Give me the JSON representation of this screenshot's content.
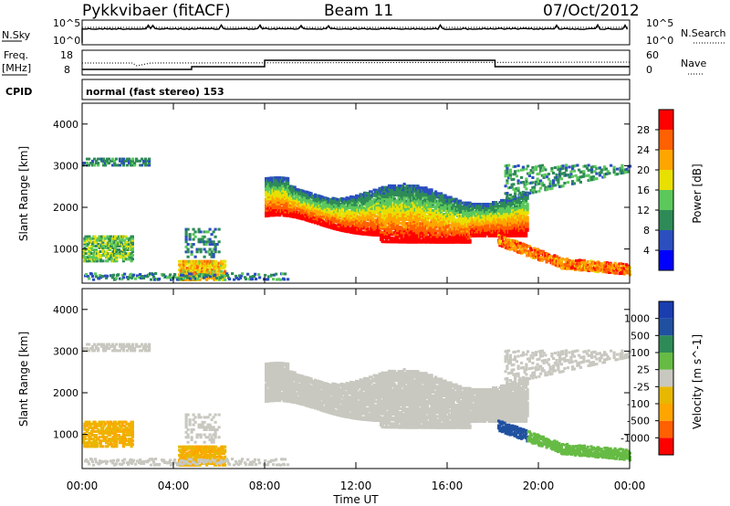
{
  "header": {
    "station": "Pykkvibaer (fitACF)",
    "beam": "Beam 11",
    "date": "07/Oct/2012"
  },
  "noise_panel": {
    "left_label": "N.Sky",
    "right_label": "N.Search",
    "ticks_left": [
      "10^5",
      "10^0"
    ],
    "ticks_right": [
      "10^5",
      "10^0"
    ]
  },
  "freq_panel": {
    "left_label_line1": "Freq.",
    "left_label_line2": "[MHz]",
    "right_label": "Nave",
    "ticks_left": [
      "18",
      "8"
    ],
    "ticks_right": [
      "60",
      "0"
    ]
  },
  "cpid": {
    "label": "CPID",
    "mode": "normal (fast stereo) 153"
  },
  "chart_data": [
    {
      "type": "heatmap",
      "quantity": "Power",
      "units": "dB",
      "ylabel": "Slant Range [km]",
      "xlabel": "Time UT",
      "x_ticks": [
        "00:00",
        "04:00",
        "08:00",
        "12:00",
        "16:00",
        "20:00",
        "00:00"
      ],
      "xlim_hours": [
        0,
        24
      ],
      "ylim": [
        180,
        4500
      ],
      "y_ticks": [
        1000,
        2000,
        3000,
        4000
      ],
      "colorbar_label": "Power [dB]",
      "colorbar_ticks": [
        "28",
        "24",
        "20",
        "16",
        "12",
        "8",
        "4"
      ],
      "colorbar_range": [
        0,
        30
      ],
      "colorbar_colors": [
        "#0000ff",
        "#2b4fbf",
        "#2e8b57",
        "#5cc85c",
        "#e8e000",
        "#ffa500",
        "#ff6000",
        "#ff0000"
      ]
    },
    {
      "type": "heatmap",
      "quantity": "Velocity",
      "units": "m s^-1",
      "ylabel": "Slant Range [km]",
      "xlabel": "Time UT",
      "x_ticks": [
        "00:00",
        "04:00",
        "08:00",
        "12:00",
        "16:00",
        "20:00",
        "00:00"
      ],
      "xlim_hours": [
        0,
        24
      ],
      "ylim": [
        180,
        4500
      ],
      "y_ticks": [
        1000,
        2000,
        3000,
        4000
      ],
      "colorbar_label": "Velocity [m s^-1]",
      "colorbar_ticks": [
        "1000",
        "500",
        "100",
        "25",
        "-25",
        "-100",
        "-500",
        "-1000"
      ],
      "colorbar_range": [
        -1250,
        1250
      ],
      "colorbar_colors": [
        "#ff0000",
        "#ff6000",
        "#ffa500",
        "#e8b800",
        "#c8c8c0",
        "#66bb44",
        "#2e8b57",
        "#2050a0",
        "#1a3db0"
      ]
    }
  ],
  "xaxis_title": "Time UT"
}
